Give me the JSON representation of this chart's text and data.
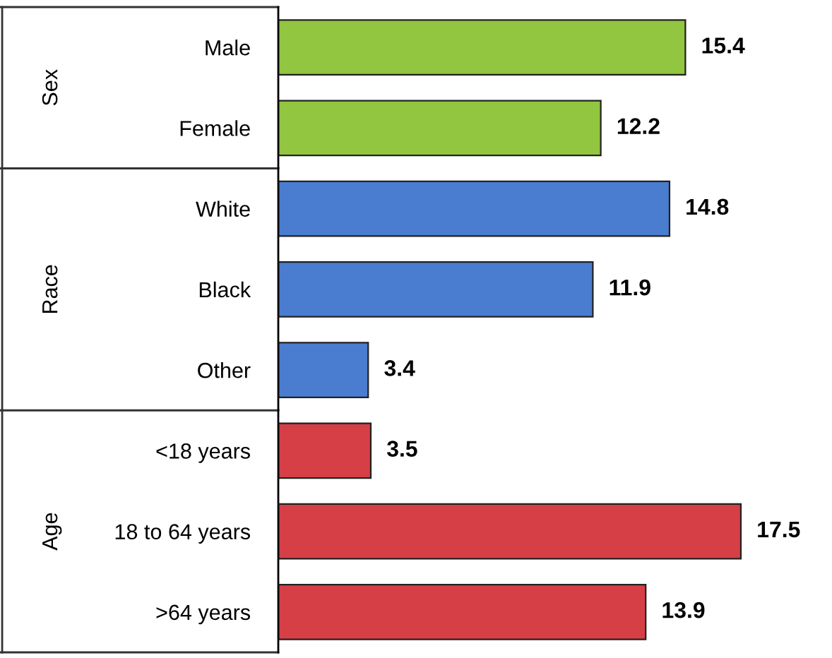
{
  "chart_data": [
    {
      "type": "bar",
      "orientation": "horizontal",
      "ylabel": "Sex",
      "categories": [
        "Male",
        "Female"
      ],
      "values": [
        15.4,
        12.2
      ],
      "color": "#92c540",
      "data_labels": true
    },
    {
      "type": "bar",
      "orientation": "horizontal",
      "ylabel": "Race",
      "categories": [
        "White",
        "Black",
        "Other"
      ],
      "values": [
        14.8,
        11.9,
        3.4
      ],
      "color": "#4a7dd0",
      "data_labels": true
    },
    {
      "type": "bar",
      "orientation": "horizontal",
      "ylabel": "Age",
      "categories": [
        "<18 years",
        "18 to 64 years",
        ">64 years"
      ],
      "values": [
        3.5,
        17.5,
        13.9
      ],
      "color": "#d63f46",
      "data_labels": true
    }
  ]
}
